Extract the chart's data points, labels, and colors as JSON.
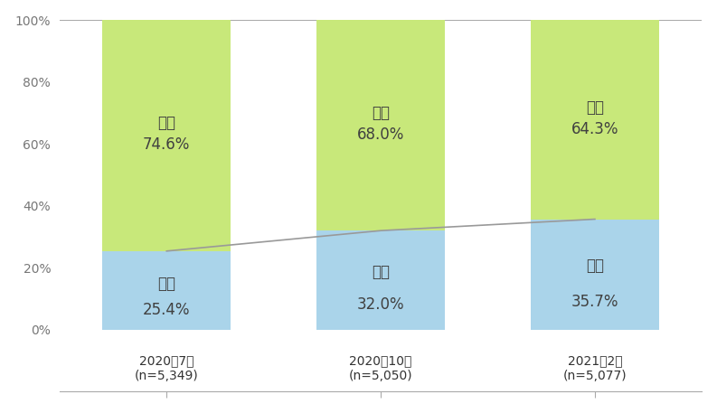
{
  "categories_line1": [
    "2020年7月",
    "2020年10月",
    "2021年2月"
  ],
  "categories_line2": [
    "(n=5,349)",
    "(n=5,050)",
    "(n=5,077)"
  ],
  "aru_values": [
    25.4,
    32.0,
    35.7
  ],
  "nai_values": [
    74.6,
    68.0,
    64.3
  ],
  "aru_color": "#aad4ea",
  "nai_color": "#c8e87a",
  "aru_label": "ある",
  "nai_label": "ない",
  "line_color": "#999999",
  "bar_width": 0.6,
  "ylim": [
    0,
    100
  ],
  "yticks": [
    0,
    20,
    40,
    60,
    80,
    100
  ],
  "ytick_labels": [
    "0%",
    "20%",
    "40%",
    "60%",
    "80%",
    "100%"
  ],
  "text_color_dark": "#404040",
  "text_color_aru": "#4488bb",
  "text_color_nai": "#4488bb",
  "label_fontsize": 12,
  "pct_fontsize": 12,
  "tick_fontsize": 10
}
